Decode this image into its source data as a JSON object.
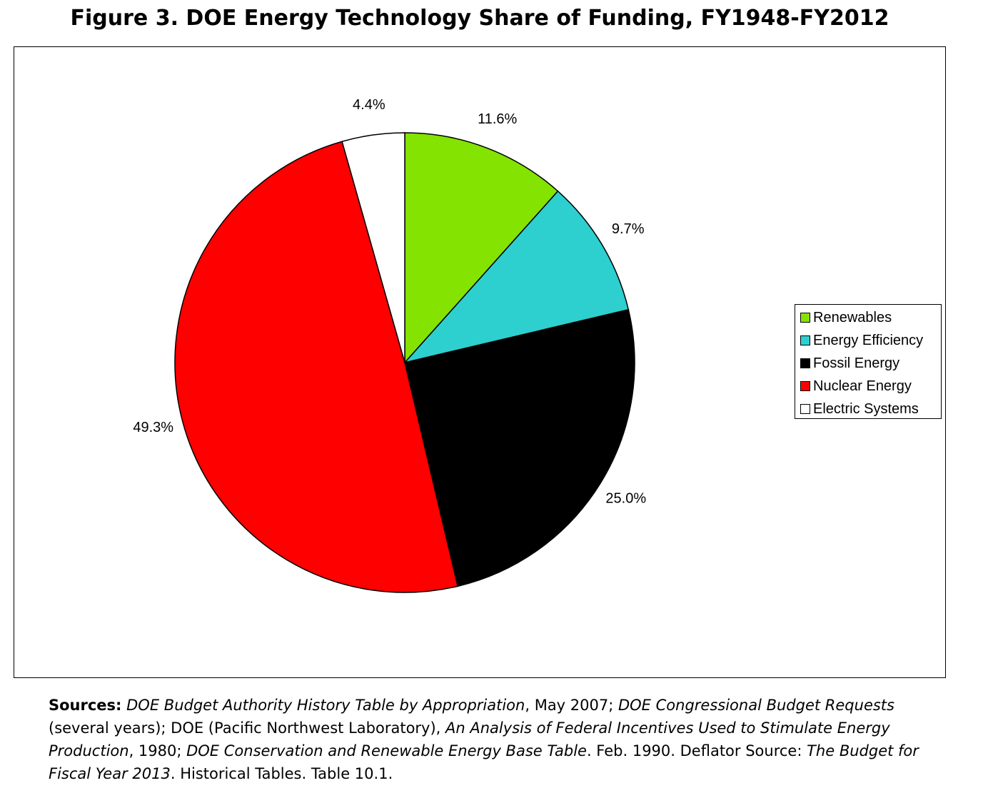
{
  "chart_data": {
    "type": "pie",
    "title": "Figure 3. DOE Energy Technology Share of Funding, FY1948-FY2012",
    "slices": [
      {
        "name": "Renewables",
        "value": 11.6,
        "label": "11.6%",
        "color": "#84E300"
      },
      {
        "name": "Energy Efficiency",
        "value": 9.7,
        "label": "9.7%",
        "color": "#2ECFCF"
      },
      {
        "name": "Fossil Energy",
        "value": 25.0,
        "label": "25.0%",
        "color": "#000000"
      },
      {
        "name": "Nuclear Energy",
        "value": 49.3,
        "label": "49.3%",
        "color": "#FF0000"
      },
      {
        "name": "Electric Systems",
        "value": 4.4,
        "label": "4.4%",
        "color": "#FFFFFF"
      }
    ],
    "legend_position": "right"
  },
  "sources": {
    "label": "Sources:",
    "parts": [
      {
        "text": "DOE Budget Authority History Table by Appropriation",
        "italic": true
      },
      {
        "text": ", May 2007; ",
        "italic": false
      },
      {
        "text": "DOE Congressional Budget Requests",
        "italic": true
      },
      {
        "text": " (several years); DOE (Pacific Northwest Laboratory), ",
        "italic": false
      },
      {
        "text": "An Analysis of Federal Incentives Used to Stimulate Energy Production",
        "italic": true
      },
      {
        "text": ", 1980; ",
        "italic": false
      },
      {
        "text": "DOE Conservation and Renewable Energy Base Table",
        "italic": true
      },
      {
        "text": ". Feb. 1990. Deflator Source: ",
        "italic": false
      },
      {
        "text": "The Budget for Fiscal Year 2013",
        "italic": true
      },
      {
        "text": ". Historical Tables. Table 10.1.",
        "italic": false
      }
    ]
  }
}
